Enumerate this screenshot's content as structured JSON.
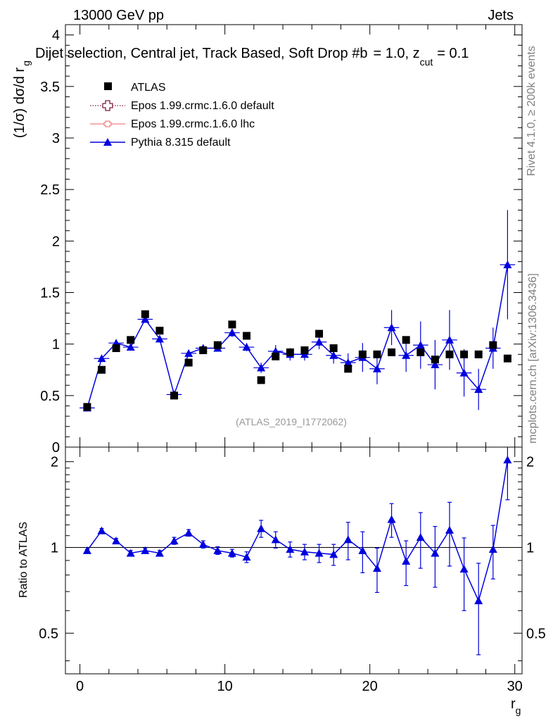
{
  "header": {
    "energy": "13000 GeV pp",
    "category": "Jets",
    "subtitle": "Dijet selection, Central jet, Track Based, Soft Drop #b",
    "subtitle_tail": "= 1.0, z",
    "subtitle_sub": "cut",
    "subtitle_value": "= 0.1"
  },
  "side_labels": {
    "rivet": "Rivet 4.1.0, ≥ 200k events",
    "mcplots": "mcplots.cern.ch [arXiv:1306.3436]"
  },
  "watermark": "(ATLAS_2019_I1772062)",
  "colors": {
    "atlas": "#000000",
    "epos_default": "#7a1a3a",
    "epos_lhc": "#f08080",
    "pythia": "#0000dd"
  },
  "legend": [
    {
      "label": "ATLAS",
      "marker": "square"
    },
    {
      "label": "Epos 1.99.crmc.1.6.0 default",
      "marker": "open-cross"
    },
    {
      "label": "Epos 1.99.crmc.1.6.0 lhc",
      "marker": "small-cross"
    },
    {
      "label": "Pythia 8.315 default",
      "marker": "triangle"
    }
  ],
  "chart_data": [
    {
      "type": "scatter",
      "panel": "main",
      "ylabel": "(1/σ) dσ/d r",
      "ylabel_sub": "g",
      "xlim": [
        -1,
        30.5
      ],
      "ylim": [
        0,
        4.1
      ],
      "yticks": [
        0,
        0.5,
        1,
        1.5,
        2,
        2.5,
        3,
        3.5,
        4
      ],
      "ytick_labels": [
        "0",
        "0.5",
        "1",
        "1.5",
        "2",
        "2.5",
        "3",
        "3.5",
        "4"
      ],
      "x": [
        0.5,
        1.5,
        2.5,
        3.5,
        4.5,
        5.5,
        6.5,
        7.5,
        8.5,
        9.5,
        10.5,
        11.5,
        12.5,
        13.5,
        14.5,
        15.5,
        16.5,
        17.5,
        18.5,
        19.5,
        20.5,
        21.5,
        22.5,
        23.5,
        24.5,
        25.5,
        26.5,
        27.5,
        28.5,
        29.5
      ],
      "series": [
        {
          "name": "ATLAS",
          "values": [
            0.39,
            0.75,
            0.96,
            1.04,
            1.29,
            1.13,
            0.5,
            0.82,
            0.94,
            0.99,
            1.19,
            1.08,
            0.65,
            0.88,
            0.92,
            0.94,
            1.1,
            0.96,
            0.76,
            0.9,
            0.9,
            0.92,
            1.04,
            0.92,
            0.85,
            0.9,
            0.9,
            0.9,
            0.99,
            0.86
          ]
        },
        {
          "name": "Pythia 8.315 default",
          "values": [
            0.38,
            0.86,
            1.01,
            0.97,
            1.24,
            1.05,
            0.51,
            0.91,
            0.96,
            0.96,
            1.11,
            0.97,
            0.77,
            0.93,
            0.9,
            0.9,
            1.02,
            0.89,
            0.82,
            0.87,
            0.76,
            1.16,
            0.89,
            0.99,
            0.8,
            1.04,
            0.72,
            0.56,
            0.96,
            1.77
          ],
          "errors": [
            0.02,
            0.02,
            0.02,
            0.02,
            0.02,
            0.02,
            0.02,
            0.03,
            0.03,
            0.03,
            0.04,
            0.04,
            0.05,
            0.06,
            0.06,
            0.06,
            0.07,
            0.08,
            0.09,
            0.14,
            0.15,
            0.17,
            0.16,
            0.23,
            0.24,
            0.29,
            0.23,
            0.2,
            0.2,
            0.53
          ]
        }
      ]
    },
    {
      "type": "scatter",
      "panel": "ratio",
      "ylabel": "Ratio to ATLAS",
      "xlabel": "r",
      "xlabel_sub": "g",
      "xlim": [
        -1,
        30.5
      ],
      "ylim": [
        0.36,
        2.25
      ],
      "yticks": [
        0.5,
        1,
        2
      ],
      "ytick_labels": [
        "0.5",
        "1",
        "2"
      ],
      "xticks": [
        0,
        10,
        20,
        30
      ],
      "xtick_labels": [
        "0",
        "10",
        "20",
        "30"
      ],
      "x": [
        0.5,
        1.5,
        2.5,
        3.5,
        4.5,
        5.5,
        6.5,
        7.5,
        8.5,
        9.5,
        10.5,
        11.5,
        12.5,
        13.5,
        14.5,
        15.5,
        16.5,
        17.5,
        18.5,
        19.5,
        20.5,
        21.5,
        22.5,
        23.5,
        24.5,
        25.5,
        26.5,
        27.5,
        28.5,
        29.5
      ],
      "series": [
        {
          "name": "Pythia 8.315 default",
          "values": [
            0.975,
            1.145,
            1.055,
            0.955,
            0.975,
            0.955,
            1.055,
            1.125,
            1.025,
            0.975,
            0.955,
            0.925,
            1.165,
            1.065,
            0.985,
            0.965,
            0.955,
            0.945,
            1.065,
            0.975,
            0.845,
            1.255,
            0.895,
            1.085,
            0.955,
            1.15,
            0.84,
            0.65,
            0.985,
            2.03
          ],
          "errors": [
            0.01,
            0.02,
            0.02,
            0.02,
            0.02,
            0.02,
            0.03,
            0.03,
            0.03,
            0.03,
            0.03,
            0.04,
            0.08,
            0.07,
            0.06,
            0.06,
            0.07,
            0.08,
            0.16,
            0.16,
            0.15,
            0.17,
            0.16,
            0.24,
            0.23,
            0.29,
            0.24,
            0.23,
            0.21,
            0.56
          ]
        }
      ]
    }
  ]
}
